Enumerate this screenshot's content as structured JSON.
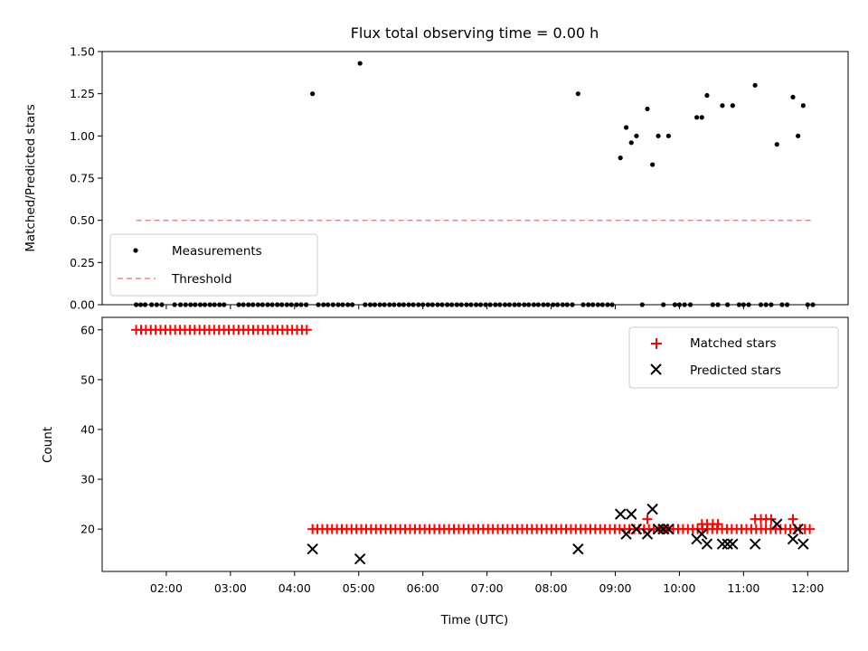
{
  "chart_data": [
    {
      "type": "scatter",
      "title": "Flux total observing time = 0.00 h",
      "xlabel": "",
      "ylabel": "Matched/Predicted stars",
      "ylim": [
        0,
        1.5
      ],
      "yticks": [
        "0.00",
        "0.25",
        "0.50",
        "0.75",
        "1.00",
        "1.25",
        "1.50"
      ],
      "xlim_hours": [
        1.0,
        12.63
      ],
      "xtick_hours": [
        2,
        3,
        4,
        5,
        6,
        7,
        8,
        9,
        10,
        11,
        12
      ],
      "legend": {
        "placement": "lower-left",
        "entries": [
          "Measurements",
          "Threshold"
        ]
      },
      "colors": {
        "measurements": "#000000",
        "threshold": "#ff8080"
      },
      "threshold": {
        "name": "Threshold",
        "y": 0.5,
        "x_start": 1.53,
        "x_end": 12.1
      },
      "series": [
        {
          "name": "Measurements",
          "points": [
            [
              4.28,
              1.25
            ],
            [
              5.02,
              1.43
            ],
            [
              8.42,
              1.25
            ],
            [
              9.08,
              0.87
            ],
            [
              9.17,
              1.05
            ],
            [
              9.25,
              0.96
            ],
            [
              9.33,
              1.0
            ],
            [
              9.5,
              1.16
            ],
            [
              9.58,
              0.83
            ],
            [
              9.67,
              1.0
            ],
            [
              9.83,
              1.0
            ],
            [
              10.27,
              1.11
            ],
            [
              10.35,
              1.11
            ],
            [
              10.43,
              1.24
            ],
            [
              10.67,
              1.18
            ],
            [
              10.83,
              1.18
            ],
            [
              11.18,
              1.3
            ],
            [
              11.52,
              0.95
            ],
            [
              11.77,
              1.23
            ],
            [
              11.85,
              1.0
            ],
            [
              11.93,
              1.18
            ],
            [
              1.53,
              0.0
            ],
            [
              1.6,
              0.0
            ],
            [
              1.67,
              0.0
            ],
            [
              1.77,
              0.0
            ],
            [
              1.85,
              0.0
            ],
            [
              1.93,
              0.0
            ],
            [
              2.13,
              0.0
            ],
            [
              2.22,
              0.0
            ],
            [
              2.3,
              0.0
            ],
            [
              2.38,
              0.0
            ],
            [
              2.45,
              0.0
            ],
            [
              2.53,
              0.0
            ],
            [
              2.6,
              0.0
            ],
            [
              2.68,
              0.0
            ],
            [
              2.75,
              0.0
            ],
            [
              2.83,
              0.0
            ],
            [
              2.9,
              0.0
            ],
            [
              3.13,
              0.0
            ],
            [
              3.2,
              0.0
            ],
            [
              3.28,
              0.0
            ],
            [
              3.35,
              0.0
            ],
            [
              3.43,
              0.0
            ],
            [
              3.5,
              0.0
            ],
            [
              3.58,
              0.0
            ],
            [
              3.65,
              0.0
            ],
            [
              3.73,
              0.0
            ],
            [
              3.8,
              0.0
            ],
            [
              3.88,
              0.0
            ],
            [
              3.95,
              0.0
            ],
            [
              4.03,
              0.0
            ],
            [
              4.1,
              0.0
            ],
            [
              4.18,
              0.0
            ],
            [
              4.37,
              0.0
            ],
            [
              4.45,
              0.0
            ],
            [
              4.52,
              0.0
            ],
            [
              4.6,
              0.0
            ],
            [
              4.68,
              0.0
            ],
            [
              4.75,
              0.0
            ],
            [
              4.83,
              0.0
            ],
            [
              4.9,
              0.0
            ],
            [
              5.1,
              0.0
            ],
            [
              5.18,
              0.0
            ],
            [
              5.25,
              0.0
            ],
            [
              5.33,
              0.0
            ],
            [
              5.4,
              0.0
            ],
            [
              5.48,
              0.0
            ],
            [
              5.55,
              0.0
            ],
            [
              5.63,
              0.0
            ],
            [
              5.7,
              0.0
            ],
            [
              5.78,
              0.0
            ],
            [
              5.85,
              0.0
            ],
            [
              5.93,
              0.0
            ],
            [
              6.0,
              0.0
            ],
            [
              6.08,
              0.0
            ],
            [
              6.15,
              0.0
            ],
            [
              6.23,
              0.0
            ],
            [
              6.3,
              0.0
            ],
            [
              6.38,
              0.0
            ],
            [
              6.45,
              0.0
            ],
            [
              6.53,
              0.0
            ],
            [
              6.6,
              0.0
            ],
            [
              6.68,
              0.0
            ],
            [
              6.75,
              0.0
            ],
            [
              6.83,
              0.0
            ],
            [
              6.9,
              0.0
            ],
            [
              6.98,
              0.0
            ],
            [
              7.05,
              0.0
            ],
            [
              7.13,
              0.0
            ],
            [
              7.2,
              0.0
            ],
            [
              7.28,
              0.0
            ],
            [
              7.35,
              0.0
            ],
            [
              7.43,
              0.0
            ],
            [
              7.5,
              0.0
            ],
            [
              7.58,
              0.0
            ],
            [
              7.65,
              0.0
            ],
            [
              7.73,
              0.0
            ],
            [
              7.8,
              0.0
            ],
            [
              7.88,
              0.0
            ],
            [
              7.95,
              0.0
            ],
            [
              8.03,
              0.0
            ],
            [
              8.1,
              0.0
            ],
            [
              8.18,
              0.0
            ],
            [
              8.25,
              0.0
            ],
            [
              8.33,
              0.0
            ],
            [
              8.5,
              0.0
            ],
            [
              8.58,
              0.0
            ],
            [
              8.65,
              0.0
            ],
            [
              8.73,
              0.0
            ],
            [
              8.8,
              0.0
            ],
            [
              8.88,
              0.0
            ],
            [
              8.95,
              0.0
            ],
            [
              9.42,
              0.0
            ],
            [
              9.75,
              0.0
            ],
            [
              9.93,
              0.0
            ],
            [
              10.0,
              0.0
            ],
            [
              10.08,
              0.0
            ],
            [
              10.17,
              0.0
            ],
            [
              10.52,
              0.0
            ],
            [
              10.6,
              0.0
            ],
            [
              10.75,
              0.0
            ],
            [
              10.93,
              0.0
            ],
            [
              11.0,
              0.0
            ],
            [
              11.08,
              0.0
            ],
            [
              11.27,
              0.0
            ],
            [
              11.35,
              0.0
            ],
            [
              11.43,
              0.0
            ],
            [
              11.6,
              0.0
            ],
            [
              11.68,
              0.0
            ],
            [
              12.0,
              0.0
            ],
            [
              12.08,
              0.0
            ]
          ]
        }
      ]
    },
    {
      "type": "scatter",
      "title": "",
      "xlabel": "Time (UTC)",
      "ylabel": "Count",
      "ylim": [
        11.5,
        62.5
      ],
      "yticks": [
        "20",
        "30",
        "40",
        "50",
        "60"
      ],
      "xlim_hours": [
        1.0,
        12.63
      ],
      "xtick_hours": [
        2,
        3,
        4,
        5,
        6,
        7,
        8,
        9,
        10,
        11,
        12
      ],
      "xticks": [
        "02:00",
        "03:00",
        "04:00",
        "05:00",
        "06:00",
        "07:00",
        "08:00",
        "09:00",
        "10:00",
        "11:00",
        "12:00"
      ],
      "legend": {
        "placement": "top-right",
        "entries": [
          "Matched stars",
          "Predicted stars"
        ]
      },
      "colors": {
        "matched": "#ff0000",
        "predicted": "#000000"
      },
      "series": [
        {
          "name": "Matched stars",
          "marker": "plus",
          "segments": [
            {
              "count": 60,
              "x_start": 1.53,
              "x_end": 4.2,
              "step": 0.076
            },
            {
              "count": 20,
              "x_start": 4.28,
              "x_end": 12.1,
              "step": 0.076
            }
          ],
          "extra_points": [
            [
              9.5,
              22
            ],
            [
              10.35,
              21
            ],
            [
              10.43,
              21
            ],
            [
              10.52,
              21
            ],
            [
              10.6,
              21
            ],
            [
              11.18,
              22
            ],
            [
              11.27,
              22
            ],
            [
              11.35,
              22
            ],
            [
              11.43,
              22
            ],
            [
              11.77,
              22
            ]
          ]
        },
        {
          "name": "Predicted stars",
          "marker": "x",
          "points": [
            [
              4.28,
              16
            ],
            [
              5.02,
              14
            ],
            [
              8.42,
              16
            ],
            [
              9.08,
              23
            ],
            [
              9.17,
              19
            ],
            [
              9.25,
              23
            ],
            [
              9.33,
              20
            ],
            [
              9.5,
              19
            ],
            [
              9.58,
              24
            ],
            [
              9.67,
              20
            ],
            [
              9.75,
              20
            ],
            [
              9.83,
              20
            ],
            [
              10.27,
              18
            ],
            [
              10.35,
              19
            ],
            [
              10.43,
              17
            ],
            [
              10.67,
              17
            ],
            [
              10.75,
              17
            ],
            [
              10.83,
              17
            ],
            [
              11.18,
              17
            ],
            [
              11.52,
              21
            ],
            [
              11.77,
              18
            ],
            [
              11.85,
              20
            ],
            [
              11.93,
              17
            ]
          ]
        }
      ]
    }
  ]
}
